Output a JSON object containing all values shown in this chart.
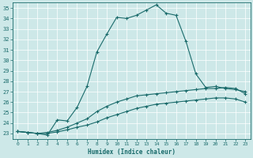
{
  "xlabel": "Humidex (Indice chaleur)",
  "background_color": "#cde8e8",
  "line_color": "#1a6b6b",
  "xlim": [
    -0.5,
    23.5
  ],
  "ylim": [
    22.5,
    35.5
  ],
  "xticks": [
    0,
    1,
    2,
    3,
    4,
    5,
    6,
    7,
    8,
    9,
    10,
    11,
    12,
    13,
    14,
    15,
    16,
    17,
    18,
    19,
    20,
    21,
    22,
    23
  ],
  "yticks": [
    23,
    24,
    25,
    26,
    27,
    28,
    29,
    30,
    31,
    32,
    33,
    34,
    35
  ],
  "curve1_x": [
    0,
    1,
    2,
    3,
    4,
    5,
    6,
    7,
    8,
    9,
    10,
    11,
    12,
    13,
    14,
    15,
    16,
    17,
    18,
    19,
    20,
    21,
    22,
    23
  ],
  "curve1_y": [
    23.2,
    23.1,
    23.0,
    22.85,
    24.3,
    24.2,
    25.5,
    27.5,
    30.8,
    32.5,
    34.1,
    34.0,
    34.3,
    34.8,
    35.3,
    34.5,
    34.3,
    31.8,
    28.7,
    27.4,
    27.5,
    27.3,
    27.2,
    27.0
  ],
  "curve2_x": [
    0,
    1,
    2,
    3,
    4,
    5,
    6,
    7,
    8,
    9,
    10,
    11,
    12,
    13,
    14,
    15,
    16,
    17,
    18,
    19,
    20,
    21,
    22,
    23
  ],
  "curve2_y": [
    23.2,
    23.1,
    23.0,
    23.1,
    23.3,
    23.6,
    24.0,
    24.4,
    25.1,
    25.6,
    26.0,
    26.3,
    26.6,
    26.7,
    26.8,
    26.9,
    27.0,
    27.1,
    27.2,
    27.3,
    27.3,
    27.4,
    27.3,
    26.8
  ],
  "curve3_x": [
    0,
    1,
    2,
    3,
    4,
    5,
    6,
    7,
    8,
    9,
    10,
    11,
    12,
    13,
    14,
    15,
    16,
    17,
    18,
    19,
    20,
    21,
    22,
    23
  ],
  "curve3_y": [
    23.2,
    23.1,
    23.0,
    23.0,
    23.15,
    23.35,
    23.6,
    23.8,
    24.1,
    24.5,
    24.8,
    25.1,
    25.4,
    25.6,
    25.8,
    25.9,
    26.0,
    26.1,
    26.2,
    26.3,
    26.4,
    26.4,
    26.3,
    26.0
  ]
}
